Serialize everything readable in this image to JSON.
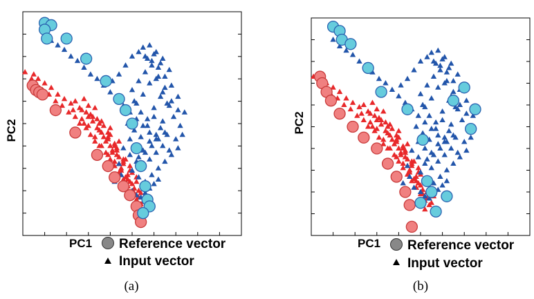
{
  "figure": {
    "captions": [
      "(a)",
      "(b)"
    ],
    "legend": {
      "reference_label": "Reference vector",
      "input_label": "Input vector",
      "reference_marker": "circle",
      "input_marker": "triangle",
      "reference_color": "#888888",
      "input_color": "#000000"
    },
    "colors": {
      "red_triangle": "#e8282a",
      "blue_triangle": "#2255aa",
      "red_circle_fill": "#f08080",
      "red_circle_stroke": "#c83a3a",
      "blue_circle_fill": "#66ccdd",
      "blue_circle_stroke": "#2a62b0"
    }
  },
  "chart_data": [
    {
      "type": "scatter",
      "caption": "(a)",
      "xlabel": "PC1",
      "ylabel": "PC2",
      "xlim": [
        0,
        10
      ],
      "ylim": [
        0,
        10
      ],
      "x_ticks": 10,
      "y_ticks": 10,
      "grid": false,
      "x_tick_labels": false,
      "y_tick_labels": false,
      "series": [
        {
          "group": "red-input",
          "marker": "triangle",
          "color": "#e8282a",
          "x": [
            0.1,
            0.4,
            0.6,
            0.9,
            1.2,
            1.5,
            1.8,
            2.1,
            2.4,
            2.6,
            2.9,
            3.1,
            3.3,
            3.5,
            3.8,
            4.0,
            4.2,
            4.4,
            4.6,
            4.8,
            5.0,
            5.2,
            5.4,
            5.2,
            5.6,
            5.0,
            4.6,
            4.3,
            4.0,
            3.7,
            3.4,
            3.0,
            2.7,
            3.2,
            3.6,
            4.1,
            4.5,
            4.9,
            2.4,
            2.8,
            3.0,
            3.4,
            3.9,
            4.4,
            4.8,
            5.1,
            4.7,
            4.2,
            3.9,
            3.5,
            3.1,
            5.3,
            5.5,
            3.3,
            2.6,
            2.2,
            1.9,
            1.6,
            1.3,
            1.0,
            0.7,
            0.5,
            3.7,
            4.0,
            4.3,
            4.6,
            2.9,
            3.2,
            3.5,
            3.8,
            4.1,
            4.4,
            4.7,
            5.0,
            5.3,
            4.5,
            4.8,
            5.1,
            3.6,
            3.9,
            4.2,
            3.0,
            2.7,
            2.3,
            4.9,
            5.2,
            5.4,
            4.0,
            4.4,
            3.3,
            3.6,
            3.9,
            4.2,
            4.5,
            4.8,
            4.3,
            4.6,
            4.9,
            5.2,
            2.8
          ],
          "y": [
            7.3,
            7.0,
            6.7,
            6.5,
            6.3,
            6.0,
            5.8,
            5.5,
            5.3,
            5.0,
            4.8,
            4.5,
            4.2,
            4.0,
            3.7,
            3.4,
            3.1,
            2.8,
            2.5,
            2.2,
            1.9,
            1.6,
            1.4,
            1.2,
            1.8,
            2.8,
            3.2,
            3.6,
            4.0,
            4.4,
            4.8,
            5.3,
            5.6,
            5.1,
            4.6,
            3.8,
            3.0,
            2.4,
            6.0,
            6.1,
            5.8,
            5.2,
            4.3,
            3.5,
            2.7,
            2.1,
            3.4,
            4.1,
            4.6,
            5.0,
            5.4,
            2.0,
            1.5,
            5.7,
            5.7,
            5.9,
            6.1,
            6.3,
            6.6,
            6.8,
            7.0,
            7.2,
            4.9,
            4.5,
            3.9,
            3.3,
            5.5,
            5.3,
            4.7,
            4.2,
            3.7,
            3.2,
            2.6,
            2.3,
            1.7,
            2.9,
            2.5,
            1.9,
            5.1,
            4.4,
            4.0,
            4.9,
            5.2,
            5.6,
            3.1,
            2.6,
            1.9,
            4.8,
            4.2,
            4.4,
            4.0,
            3.6,
            3.3,
            2.7,
            2.2,
            3.8,
            3.4,
            2.9,
            2.4,
            5.0
          ]
        },
        {
          "group": "blue-input",
          "marker": "triangle",
          "color": "#2255aa",
          "x": [
            1.0,
            1.3,
            1.6,
            1.9,
            2.2,
            2.5,
            2.8,
            3.1,
            3.4,
            3.7,
            4.0,
            4.3,
            4.6,
            4.9,
            5.2,
            5.5,
            5.8,
            6.1,
            6.4,
            6.7,
            7.0,
            7.2,
            7.4,
            7.1,
            6.8,
            6.5,
            6.2,
            5.9,
            5.6,
            5.3,
            5.0,
            4.7,
            4.4,
            4.1,
            5.0,
            5.3,
            5.6,
            5.9,
            6.2,
            6.5,
            6.8,
            7.1,
            5.2,
            5.5,
            5.8,
            6.1,
            6.4,
            6.7,
            5.1,
            5.4,
            5.7,
            6.0,
            6.3,
            6.6,
            6.9,
            4.8,
            5.1,
            5.4,
            5.7,
            6.0,
            6.3,
            6.6,
            4.9,
            5.2,
            5.5,
            5.8,
            6.1,
            6.4,
            5.3,
            5.6,
            5.9,
            6.2,
            6.5,
            4.6,
            4.9,
            5.2,
            5.5,
            5.8,
            6.1,
            5.0,
            5.3,
            5.6,
            5.9,
            6.2,
            6.5,
            6.8,
            7.1,
            7.3,
            4.5,
            4.2,
            4.7,
            5.0,
            5.2,
            5.4,
            5.6,
            5.8,
            6.0,
            6.2,
            4.4,
            5.7,
            6.0,
            6.3,
            5.5,
            5.8,
            6.1,
            6.4,
            6.7
          ],
          "y": [
            9.0,
            8.7,
            8.5,
            8.3,
            8.0,
            7.8,
            7.5,
            7.2,
            7.0,
            6.7,
            6.4,
            6.1,
            5.8,
            5.5,
            5.2,
            4.9,
            4.6,
            4.3,
            4.0,
            3.8,
            4.3,
            4.9,
            5.5,
            6.2,
            6.7,
            7.1,
            7.5,
            7.8,
            8.0,
            8.2,
            8.0,
            7.6,
            7.2,
            6.9,
            6.5,
            6.9,
            7.3,
            7.6,
            7.1,
            6.6,
            6.0,
            5.6,
            5.9,
            6.3,
            6.8,
            7.0,
            6.4,
            5.8,
            6.0,
            5.5,
            5.2,
            5.7,
            6.2,
            5.9,
            5.3,
            5.0,
            4.7,
            4.4,
            4.9,
            5.3,
            4.8,
            4.5,
            4.3,
            4.0,
            3.8,
            4.2,
            4.5,
            5.1,
            3.5,
            3.7,
            4.0,
            4.3,
            4.6,
            3.9,
            3.6,
            3.3,
            3.1,
            3.4,
            3.7,
            2.9,
            2.6,
            2.4,
            2.7,
            3.0,
            3.3,
            3.6,
            3.9,
            4.5,
            2.7,
            2.4,
            2.2,
            2.0,
            1.8,
            1.7,
            1.9,
            2.1,
            2.3,
            2.5,
            3.2,
            7.9,
            8.1,
            7.7,
            8.4,
            8.5,
            8.2,
            7.9,
            7.4
          ]
        },
        {
          "group": "red-reference",
          "marker": "circle",
          "color": "#f08080",
          "x": [
            0.45,
            0.6,
            0.75,
            0.9,
            1.5,
            2.4,
            3.4,
            3.9,
            4.2,
            4.6,
            4.9,
            5.2,
            5.3,
            5.4
          ],
          "y": [
            6.7,
            6.5,
            6.4,
            6.3,
            5.6,
            4.6,
            3.6,
            3.1,
            2.6,
            2.2,
            1.8,
            1.3,
            0.9,
            0.6
          ]
        },
        {
          "group": "blue-reference",
          "marker": "circle",
          "color": "#66ccdd",
          "x": [
            1.0,
            1.3,
            1.0,
            1.1,
            2.0,
            2.9,
            3.8,
            4.4,
            4.7,
            5.0,
            5.2,
            5.4,
            5.6,
            5.7,
            5.8,
            5.5
          ],
          "y": [
            9.5,
            9.4,
            9.2,
            8.8,
            8.8,
            7.9,
            6.9,
            6.1,
            5.6,
            5.0,
            3.9,
            3.1,
            2.2,
            1.6,
            1.3,
            1.0
          ]
        }
      ]
    },
    {
      "type": "scatter",
      "caption": "(b)",
      "xlabel": "PC1",
      "ylabel": "PC2",
      "xlim": [
        0,
        10
      ],
      "ylim": [
        0,
        10
      ],
      "x_ticks": 10,
      "y_ticks": 10,
      "grid": false,
      "x_tick_labels": false,
      "y_tick_labels": false,
      "series": [
        {
          "group": "red-input",
          "marker": "triangle",
          "color": "#e8282a",
          "x": [
            0.1,
            0.4,
            0.6,
            0.9,
            1.2,
            1.5,
            1.8,
            2.1,
            2.4,
            2.6,
            2.9,
            3.1,
            3.3,
            3.5,
            3.8,
            4.0,
            4.2,
            4.4,
            4.6,
            4.8,
            5.0,
            5.2,
            5.4,
            5.2,
            5.6,
            5.0,
            4.6,
            4.3,
            4.0,
            3.7,
            3.4,
            3.0,
            2.7,
            3.2,
            3.6,
            4.1,
            4.5,
            4.9,
            2.4,
            2.8,
            3.0,
            3.4,
            3.9,
            4.4,
            4.8,
            5.1,
            4.7,
            4.2,
            3.9,
            3.5,
            3.1,
            5.3,
            5.5,
            3.3,
            2.6,
            2.2,
            1.9,
            1.6,
            1.3,
            1.0,
            0.7,
            0.5,
            3.7,
            4.0,
            4.3,
            4.6,
            2.9,
            3.2,
            3.5,
            3.8,
            4.1,
            4.4,
            4.7,
            5.0,
            5.3,
            4.5,
            4.8,
            5.1,
            3.6,
            3.9,
            4.2,
            3.0,
            2.7,
            2.3,
            4.9,
            5.2,
            5.4,
            4.0,
            4.4,
            3.3,
            3.6,
            3.9,
            4.2,
            4.5,
            4.8,
            4.3,
            4.6,
            4.9,
            5.2,
            2.8
          ],
          "y": [
            7.3,
            7.0,
            6.7,
            6.5,
            6.3,
            6.0,
            5.8,
            5.5,
            5.3,
            5.0,
            4.8,
            4.5,
            4.2,
            4.0,
            3.7,
            3.4,
            3.1,
            2.8,
            2.5,
            2.2,
            1.9,
            1.6,
            1.4,
            1.2,
            1.8,
            2.8,
            3.2,
            3.6,
            4.0,
            4.4,
            4.8,
            5.3,
            5.6,
            5.1,
            4.6,
            3.8,
            3.0,
            2.4,
            6.0,
            6.1,
            5.8,
            5.2,
            4.3,
            3.5,
            2.7,
            2.1,
            3.4,
            4.1,
            4.6,
            5.0,
            5.4,
            2.0,
            1.5,
            5.7,
            5.7,
            5.9,
            6.1,
            6.3,
            6.6,
            6.8,
            7.0,
            7.2,
            4.9,
            4.5,
            3.9,
            3.3,
            5.5,
            5.3,
            4.7,
            4.2,
            3.7,
            3.2,
            2.6,
            2.3,
            1.7,
            2.9,
            2.5,
            1.9,
            5.1,
            4.4,
            4.0,
            4.9,
            5.2,
            5.6,
            3.1,
            2.6,
            1.9,
            4.8,
            4.2,
            4.4,
            4.0,
            3.6,
            3.3,
            2.7,
            2.2,
            3.8,
            3.4,
            2.9,
            2.4,
            5.0
          ]
        },
        {
          "group": "blue-input",
          "marker": "triangle",
          "color": "#2255aa",
          "x": [
            1.0,
            1.3,
            1.6,
            1.9,
            2.2,
            2.5,
            2.8,
            3.1,
            3.4,
            3.7,
            4.0,
            4.3,
            4.6,
            4.9,
            5.2,
            5.5,
            5.8,
            6.1,
            6.4,
            6.7,
            7.0,
            7.2,
            7.4,
            7.1,
            6.8,
            6.5,
            6.2,
            5.9,
            5.6,
            5.3,
            5.0,
            4.7,
            4.4,
            4.1,
            5.0,
            5.3,
            5.6,
            5.9,
            6.2,
            6.5,
            6.8,
            7.1,
            5.2,
            5.5,
            5.8,
            6.1,
            6.4,
            6.7,
            5.1,
            5.4,
            5.7,
            6.0,
            6.3,
            6.6,
            6.9,
            4.8,
            5.1,
            5.4,
            5.7,
            6.0,
            6.3,
            6.6,
            4.9,
            5.2,
            5.5,
            5.8,
            6.1,
            6.4,
            5.3,
            5.6,
            5.9,
            6.2,
            6.5,
            4.6,
            4.9,
            5.2,
            5.5,
            5.8,
            6.1,
            5.0,
            5.3,
            5.6,
            5.9,
            6.2,
            6.5,
            6.8,
            7.1,
            7.3,
            4.5,
            4.2,
            4.7,
            5.0,
            5.2,
            5.4,
            5.6,
            5.8,
            6.0,
            6.2,
            4.4,
            5.7,
            6.0,
            6.3,
            5.5,
            5.8,
            6.1,
            6.4,
            6.7
          ],
          "y": [
            9.0,
            8.7,
            8.5,
            8.3,
            8.0,
            7.8,
            7.5,
            7.2,
            7.0,
            6.7,
            6.4,
            6.1,
            5.8,
            5.5,
            5.2,
            4.9,
            4.6,
            4.3,
            4.0,
            3.8,
            4.3,
            4.9,
            5.5,
            6.2,
            6.7,
            7.1,
            7.5,
            7.8,
            8.0,
            8.2,
            8.0,
            7.6,
            7.2,
            6.9,
            6.5,
            6.9,
            7.3,
            7.6,
            7.1,
            6.6,
            6.0,
            5.6,
            5.9,
            6.3,
            6.8,
            7.0,
            6.4,
            5.8,
            6.0,
            5.5,
            5.2,
            5.7,
            6.2,
            5.9,
            5.3,
            5.0,
            4.7,
            4.4,
            4.9,
            5.3,
            4.8,
            4.5,
            4.3,
            4.0,
            3.8,
            4.2,
            4.5,
            5.1,
            3.5,
            3.7,
            4.0,
            4.3,
            4.6,
            3.9,
            3.6,
            3.3,
            3.1,
            3.4,
            3.7,
            2.9,
            2.6,
            2.4,
            2.7,
            3.0,
            3.3,
            3.6,
            3.9,
            4.5,
            2.7,
            2.4,
            2.2,
            2.0,
            1.8,
            1.7,
            1.9,
            2.1,
            2.3,
            2.5,
            3.2,
            7.9,
            8.1,
            7.7,
            8.4,
            8.5,
            8.2,
            7.9,
            7.4
          ]
        },
        {
          "group": "red-reference",
          "marker": "circle",
          "color": "#f08080",
          "x": [
            0.4,
            0.5,
            0.7,
            0.9,
            1.3,
            1.9,
            2.4,
            3.0,
            3.5,
            3.9,
            4.3,
            4.5,
            4.6
          ],
          "y": [
            7.3,
            7.0,
            6.6,
            6.2,
            5.6,
            5.0,
            4.5,
            4.0,
            3.3,
            2.7,
            2.0,
            1.4,
            0.4
          ]
        },
        {
          "group": "blue-reference",
          "marker": "circle",
          "color": "#66ccdd",
          "x": [
            1.0,
            1.3,
            1.4,
            1.8,
            2.6,
            3.2,
            4.4,
            5.0,
            5.7,
            6.2,
            6.5,
            7.0,
            7.3,
            7.5,
            5.5,
            5.3,
            5.1
          ],
          "y": [
            9.6,
            9.4,
            9.0,
            8.8,
            7.7,
            6.6,
            5.8,
            1.5,
            1.1,
            1.8,
            6.2,
            6.8,
            4.9,
            5.8,
            2.0,
            2.5,
            4.4
          ]
        }
      ]
    }
  ]
}
